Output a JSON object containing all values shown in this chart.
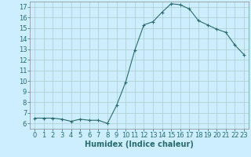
{
  "x": [
    0,
    1,
    2,
    3,
    4,
    5,
    6,
    7,
    8,
    9,
    10,
    11,
    12,
    13,
    14,
    15,
    16,
    17,
    18,
    19,
    20,
    21,
    22,
    23
  ],
  "y": [
    6.5,
    6.5,
    6.5,
    6.4,
    6.2,
    6.4,
    6.3,
    6.3,
    6.0,
    7.7,
    9.9,
    12.9,
    15.3,
    15.6,
    16.5,
    17.3,
    17.2,
    16.8,
    15.7,
    15.3,
    14.9,
    14.6,
    13.4,
    12.5
  ],
  "line_color": "#2a6b6b",
  "marker": "+",
  "marker_size": 3,
  "marker_linewidth": 0.8,
  "bg_color": "#cceeff",
  "grid_color": "#aacccc",
  "xlabel": "Humidex (Indice chaleur)",
  "xlim": [
    -0.5,
    23.5
  ],
  "ylim": [
    5.5,
    17.5
  ],
  "yticks": [
    6,
    7,
    8,
    9,
    10,
    11,
    12,
    13,
    14,
    15,
    16,
    17
  ],
  "xticks": [
    0,
    1,
    2,
    3,
    4,
    5,
    6,
    7,
    8,
    9,
    10,
    11,
    12,
    13,
    14,
    15,
    16,
    17,
    18,
    19,
    20,
    21,
    22,
    23
  ],
  "tick_fontsize": 6,
  "xlabel_fontsize": 7
}
